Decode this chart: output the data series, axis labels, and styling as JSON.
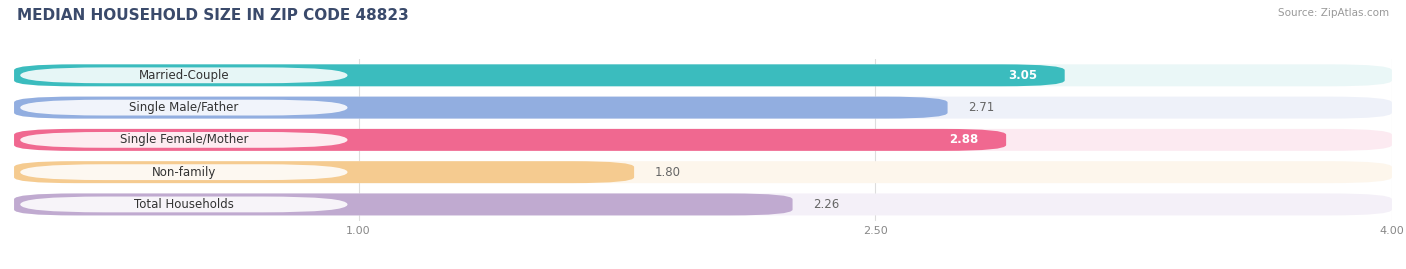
{
  "title": "MEDIAN HOUSEHOLD SIZE IN ZIP CODE 48823",
  "source": "Source: ZipAtlas.com",
  "categories": [
    "Married-Couple",
    "Single Male/Father",
    "Single Female/Mother",
    "Non-family",
    "Total Households"
  ],
  "values": [
    3.05,
    2.71,
    2.88,
    1.8,
    2.26
  ],
  "bar_colors": [
    "#3bbcbe",
    "#92aee0",
    "#f06890",
    "#f5cb90",
    "#c0aad0"
  ],
  "bar_bg_colors": [
    "#eaf7f7",
    "#eef1f9",
    "#fceaf1",
    "#fdf6ec",
    "#f4f0f8"
  ],
  "value_inside": [
    true,
    false,
    true,
    false,
    false
  ],
  "value_colors_inside": "#ffffff",
  "value_colors_outside": "#888888",
  "xlim": [
    0.0,
    4.0
  ],
  "xmin": 0.0,
  "xticks": [
    1.0,
    2.5,
    4.0
  ],
  "figsize": [
    14.06,
    2.69
  ],
  "dpi": 100,
  "bar_height": 0.68,
  "title_fontsize": 11,
  "source_fontsize": 7.5,
  "label_fontsize": 8.5,
  "value_fontsize": 8.5,
  "title_color": "#3a4a6b",
  "bg_color": "#ffffff",
  "grid_color": "#dddddd"
}
